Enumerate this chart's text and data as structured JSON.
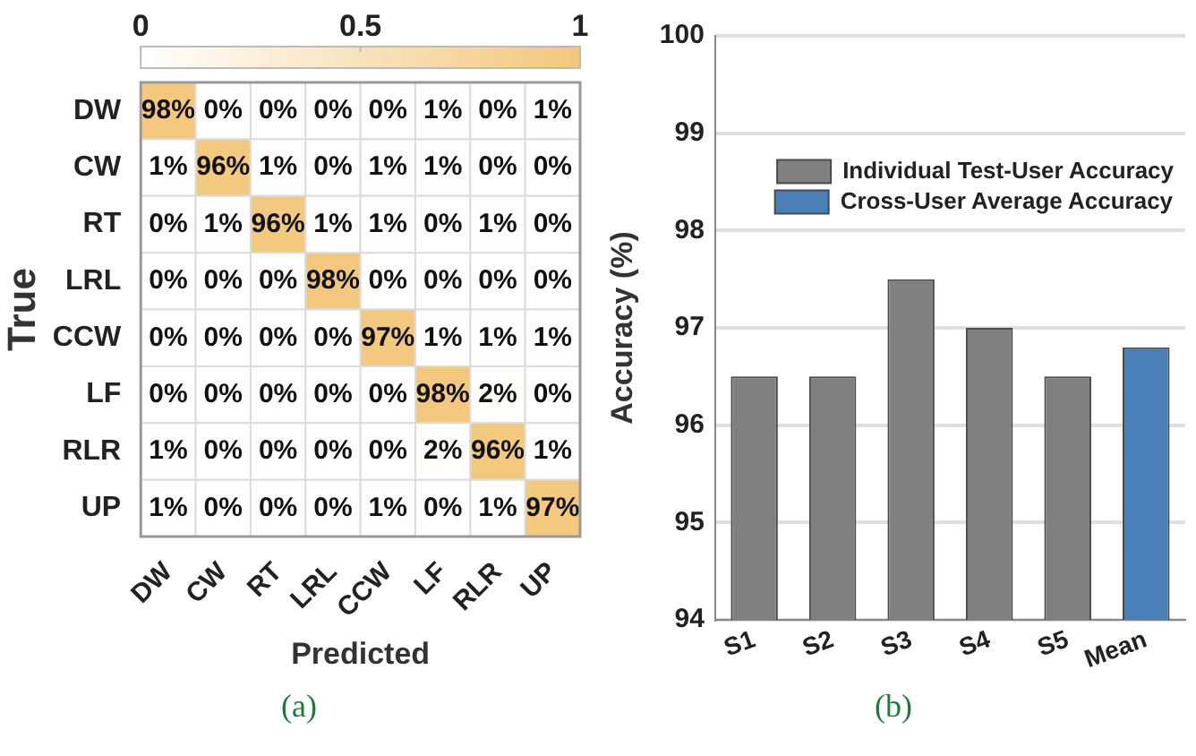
{
  "chart_data": [
    {
      "type": "heatmap",
      "xlabel": "Predicted",
      "ylabel": "True",
      "categories": [
        "DW",
        "CW",
        "RT",
        "LRL",
        "CCW",
        "LF",
        "RLR",
        "UP"
      ],
      "y_categories": [
        "DW",
        "CW",
        "RT",
        "LRL",
        "CCW",
        "LF",
        "RLR",
        "UP"
      ],
      "cells": [
        [
          0.98,
          0,
          0,
          0,
          0,
          0.01,
          0,
          0.01
        ],
        [
          0.01,
          0.96,
          0.01,
          0,
          0.01,
          0.01,
          0,
          0
        ],
        [
          0,
          0.01,
          0.96,
          0.01,
          0.01,
          0,
          0.01,
          0
        ],
        [
          0,
          0,
          0,
          0.98,
          0,
          0,
          0,
          0
        ],
        [
          0,
          0,
          0,
          0,
          0.97,
          0.01,
          0.01,
          0.01
        ],
        [
          0,
          0,
          0,
          0,
          0,
          0.98,
          0.02,
          0
        ],
        [
          0.01,
          0,
          0,
          0,
          0,
          0.02,
          0.96,
          0.01
        ],
        [
          0.01,
          0,
          0,
          0,
          0.01,
          0,
          0.01,
          0.97
        ]
      ],
      "cell_labels": [
        [
          "98%",
          "0%",
          "0%",
          "0%",
          "0%",
          "1%",
          "0%",
          "1%"
        ],
        [
          "1%",
          "96%",
          "1%",
          "0%",
          "1%",
          "1%",
          "0%",
          "0%"
        ],
        [
          "0%",
          "1%",
          "96%",
          "1%",
          "1%",
          "0%",
          "1%",
          "0%"
        ],
        [
          "0%",
          "0%",
          "0%",
          "98%",
          "0%",
          "0%",
          "0%",
          "0%"
        ],
        [
          "0%",
          "0%",
          "0%",
          "0%",
          "97%",
          "1%",
          "1%",
          "1%"
        ],
        [
          "0%",
          "0%",
          "0%",
          "0%",
          "0%",
          "98%",
          "2%",
          "0%"
        ],
        [
          "1%",
          "0%",
          "0%",
          "0%",
          "0%",
          "2%",
          "96%",
          "1%"
        ],
        [
          "1%",
          "0%",
          "0%",
          "0%",
          "1%",
          "0%",
          "1%",
          "97%"
        ]
      ],
      "clim": [
        0,
        1
      ],
      "cticks": [
        0,
        0.5,
        1
      ],
      "annotations": [
        "(a)"
      ]
    },
    {
      "type": "bar",
      "ylabel": "Accuracy (%)",
      "categories": [
        "S1",
        "S2",
        "S3",
        "S4",
        "S5",
        "Mean"
      ],
      "series": [
        {
          "name": "Individual Test-User Accuracy",
          "color": "#808080",
          "values": [
            96.5,
            96.5,
            97.5,
            97,
            96.5,
            null
          ]
        },
        {
          "name": "Cross-User Average Accuracy",
          "color": "#4a80b8",
          "values": [
            null,
            null,
            null,
            null,
            null,
            96.8
          ]
        }
      ],
      "ylim": [
        94,
        100
      ],
      "yticks": [
        94,
        95,
        96,
        97,
        98,
        99,
        100
      ],
      "grid": "y",
      "legend": "top right",
      "annotations": [
        "(b)"
      ]
    }
  ]
}
